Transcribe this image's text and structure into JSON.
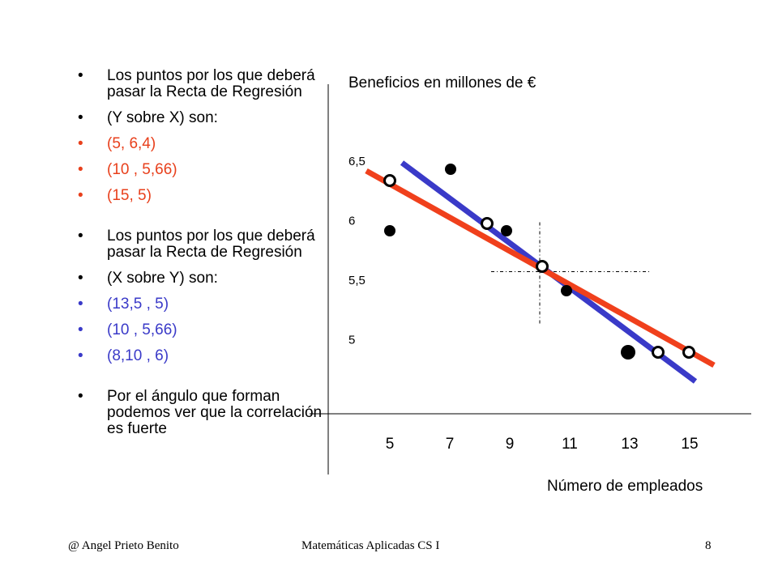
{
  "bullets": [
    {
      "text": "Los puntos por los que deberá pasar la Recta de Regresión",
      "color": "#000000",
      "gap": "none"
    },
    {
      "text": "(Y sobre X) son:",
      "color": "#000000",
      "gap": "s"
    },
    {
      "text": "(5,  6,4)",
      "color": "#e8401c",
      "gap": "s"
    },
    {
      "text": "(10 , 5,66)",
      "color": "#e8401c",
      "gap": "s"
    },
    {
      "text": "(15, 5)",
      "color": "#e8401c",
      "gap": "s"
    },
    {
      "text": "Los puntos por los que deberá pasar la Recta de Regresión",
      "color": "#000000",
      "gap": "l"
    },
    {
      "text": "(X sobre Y) son:",
      "color": "#000000",
      "gap": "s"
    },
    {
      "text": "(13,5 ,  5)",
      "color": "#3a3ac8",
      "gap": "s"
    },
    {
      "text": "(10 , 5,66)",
      "color": "#3a3ac8",
      "gap": "s"
    },
    {
      "text": "(8,10 , 6)",
      "color": "#3a3ac8",
      "gap": "s"
    },
    {
      "text": "Por el ángulo que forman podemos ver que la correlación  es fuerte",
      "color": "#000000",
      "gap": "l"
    }
  ],
  "chart_data": {
    "type": "scatter",
    "ylabel": "Beneficios en millones de €",
    "xlabel": "Número de empleados",
    "x_ticks": [
      "5",
      "7",
      "9",
      "11",
      "13",
      "15"
    ],
    "x_tick_values": [
      5,
      7,
      9,
      11,
      13,
      15
    ],
    "y_ticks": [
      "6,5",
      "6",
      "5,5",
      "5"
    ],
    "y_tick_values": [
      6.5,
      6.0,
      5.5,
      5.0
    ],
    "data_points": [
      {
        "x": 7,
        "y": 6.5
      },
      {
        "x": 5,
        "y": 6.0
      },
      {
        "x": 9,
        "y": 6.0
      },
      {
        "x": 11,
        "y": 5.5
      },
      {
        "x": 13,
        "y": 5.0
      }
    ],
    "regression_points": [
      {
        "x": 5,
        "y": 6.4
      },
      {
        "x": 8.1,
        "y": 6.0
      },
      {
        "x": 10,
        "y": 5.66
      },
      {
        "x": 13.5,
        "y": 5.0
      },
      {
        "x": 15,
        "y": 5.0
      }
    ],
    "lines": [
      {
        "label": "Y sobre X",
        "color": "#f0401c",
        "from": {
          "x": 5,
          "y": 6.4
        },
        "to": {
          "x": 15,
          "y": 5.0
        }
      },
      {
        "label": "X sobre Y",
        "color": "#3a3ac8",
        "from": {
          "x": 8.1,
          "y": 6.0
        },
        "to": {
          "x": 13.5,
          "y": 5.0
        }
      }
    ],
    "mean": {
      "x": 10,
      "y": 5.66
    }
  },
  "footer": {
    "author": "@   Angel Prieto Benito",
    "course": "Matemáticas Aplicadas CS I",
    "page": "8"
  }
}
